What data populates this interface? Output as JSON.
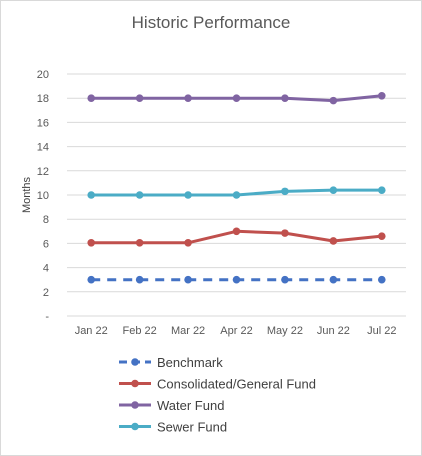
{
  "chart_data": {
    "type": "line",
    "title": "Historic Performance",
    "xlabel": "",
    "ylabel": "Months",
    "ylim": [
      0,
      20
    ],
    "ytick_labels": [
      "-",
      "2",
      "4",
      "6",
      "8",
      "10",
      "12",
      "14",
      "16",
      "18",
      "20"
    ],
    "categories": [
      "Jan 22",
      "Feb 22",
      "Mar 22",
      "Apr 22",
      "May 22",
      "Jun 22",
      "Jul 22"
    ],
    "grid": true,
    "legend_position": "bottom",
    "series": [
      {
        "name": "Benchmark",
        "color": "#4472c4",
        "dashed": true,
        "values": [
          3,
          3,
          3,
          3,
          3,
          3,
          3
        ]
      },
      {
        "name": "Consolidated/General Fund",
        "color": "#c0504d",
        "dashed": false,
        "values": [
          6.05,
          6.05,
          6.05,
          7.0,
          6.85,
          6.2,
          6.6
        ]
      },
      {
        "name": "Water Fund",
        "color": "#8064a2",
        "dashed": false,
        "values": [
          18.0,
          18.0,
          18.0,
          18.0,
          18.0,
          17.8,
          18.2
        ]
      },
      {
        "name": "Sewer Fund",
        "color": "#4bacc6",
        "dashed": false,
        "values": [
          10.0,
          10.0,
          10.0,
          10.0,
          10.3,
          10.4,
          10.4
        ]
      }
    ]
  }
}
